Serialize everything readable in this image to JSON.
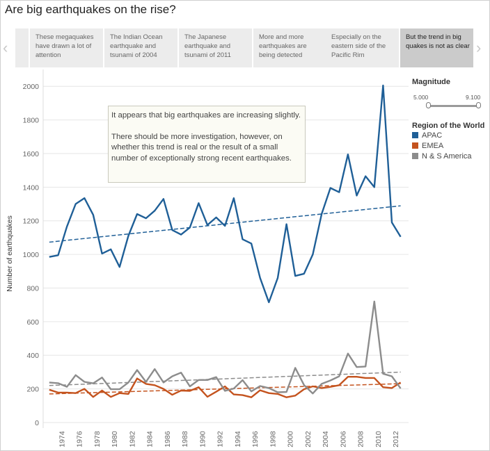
{
  "page": {
    "title": "Are big earthquakes on the rise?"
  },
  "story": {
    "prev_icon": "chevron-left-icon",
    "next_icon": "chevron-right-icon",
    "points": [
      "These megaquakes have drawn a lot of attention",
      "The Indian Ocean earthquake and tsunami of 2004",
      "The Japanese earthquake and tsunami of 2011",
      "More and more earthquakes are being detected",
      "Especially on the eastern side of the Pacific Rim",
      "But the trend in big quakes is not as clear"
    ],
    "active_index": 5
  },
  "annotation": {
    "line1": "It appears that big earthquakes are increasing slightly.",
    "line2": "There should be more investigation, however, on whether this trend is real or the result of a small number of exceptionally strong recent earthquakes."
  },
  "filters": {
    "magnitude": {
      "title": "Magnitude",
      "min_label": "5.000",
      "max_label": "9.100"
    },
    "region": {
      "title": "Region of the World"
    }
  },
  "chart_data": {
    "type": "line",
    "title": "",
    "xlabel": "",
    "ylabel": "Number of earthquakes",
    "ylim": [
      0,
      2100
    ],
    "xlim": [
      1972.3,
      2013.9
    ],
    "yticks": [
      0,
      200,
      400,
      600,
      800,
      1000,
      1200,
      1400,
      1600,
      1800,
      2000
    ],
    "xticks": [
      1974,
      1976,
      1978,
      1980,
      1982,
      1984,
      1986,
      1988,
      1990,
      1992,
      1994,
      1996,
      1998,
      2000,
      2002,
      2004,
      2006,
      2008,
      2010,
      2012
    ],
    "x": [
      1973,
      1974,
      1975,
      1976,
      1977,
      1978,
      1979,
      1980,
      1981,
      1982,
      1983,
      1984,
      1985,
      1986,
      1987,
      1988,
      1989,
      1990,
      1991,
      1992,
      1993,
      1994,
      1995,
      1996,
      1997,
      1998,
      1999,
      2000,
      2001,
      2002,
      2003,
      2004,
      2005,
      2006,
      2007,
      2008,
      2009,
      2010,
      2011,
      2012,
      2013
    ],
    "grid": true,
    "legend": "right",
    "series": [
      {
        "name": "APAC",
        "color": "#1f5f97",
        "values": [
          985,
          995,
          1165,
          1300,
          1335,
          1235,
          1005,
          1030,
          925,
          1110,
          1240,
          1215,
          1260,
          1330,
          1145,
          1118,
          1160,
          1305,
          1175,
          1220,
          1170,
          1335,
          1090,
          1065,
          860,
          715,
          860,
          1180,
          872,
          885,
          1000,
          1240,
          1395,
          1370,
          1595,
          1350,
          1465,
          1400,
          2005,
          1190,
          1105
        ],
        "trend": [
          1073,
          1289
        ]
      },
      {
        "name": "EMEA",
        "color": "#c4531e",
        "values": [
          195,
          178,
          178,
          175,
          200,
          152,
          190,
          152,
          175,
          170,
          262,
          230,
          222,
          200,
          165,
          190,
          188,
          210,
          153,
          183,
          215,
          167,
          163,
          150,
          192,
          175,
          170,
          150,
          160,
          198,
          215,
          205,
          212,
          222,
          272,
          272,
          265,
          265,
          210,
          205,
          238
        ],
        "trend": [
          170,
          231
        ]
      },
      {
        "name": "N & S America",
        "color": "#8c8c8c",
        "values": [
          238,
          234,
          212,
          282,
          242,
          233,
          268,
          198,
          198,
          238,
          312,
          242,
          318,
          238,
          275,
          297,
          215,
          253,
          253,
          270,
          188,
          202,
          252,
          185,
          217,
          205,
          180,
          182,
          325,
          223,
          173,
          230,
          250,
          275,
          410,
          330,
          333,
          720,
          290,
          275,
          203
        ],
        "trend": [
          220,
          300
        ]
      }
    ]
  }
}
